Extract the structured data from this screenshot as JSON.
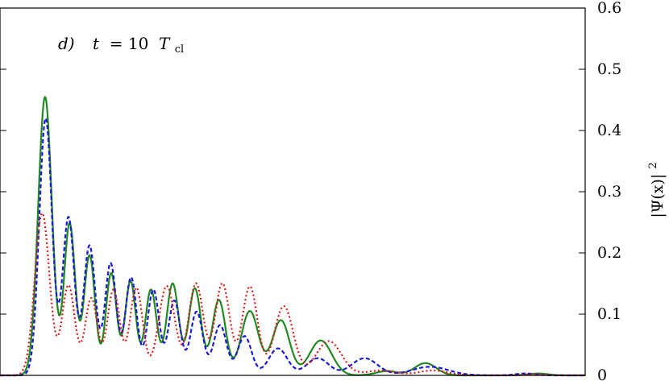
{
  "chart_data": {
    "type": "line",
    "annotation": {
      "panel": "d)",
      "var": "t",
      "eq": " = 10 ",
      "sym": "T",
      "sub": "cl"
    },
    "ylabel": {
      "main": "|Ψ(x)|",
      "sup": "2"
    },
    "xlim": [
      0,
      1
    ],
    "ylim": [
      0,
      0.6
    ],
    "yticks": [
      0,
      0.1,
      0.2,
      0.3,
      0.4,
      0.5,
      0.6
    ],
    "ytick_labels": [
      "0",
      "0.1",
      "0.2",
      "0.3",
      "0.4",
      "0.5",
      "0.6"
    ],
    "grid": false,
    "series": [
      {
        "color": "#228822",
        "style": "solid",
        "peaks": [
          [
            0.077,
            0.455
          ],
          [
            0.119,
            0.248
          ],
          [
            0.153,
            0.196
          ],
          [
            0.19,
            0.167
          ],
          [
            0.223,
            0.154
          ],
          [
            0.258,
            0.14
          ],
          [
            0.295,
            0.15
          ],
          [
            0.333,
            0.142
          ],
          [
            0.374,
            0.123
          ],
          [
            0.427,
            0.105
          ],
          [
            0.48,
            0.09
          ],
          [
            0.548,
            0.057
          ],
          [
            0.661,
            0.007
          ],
          [
            0.727,
            0.02
          ],
          [
            0.92,
            0.003
          ]
        ]
      },
      {
        "color": "#1a1ad6",
        "style": "dashed",
        "peaks": [
          [
            0.078,
            0.42
          ],
          [
            0.117,
            0.258
          ],
          [
            0.153,
            0.212
          ],
          [
            0.189,
            0.183
          ],
          [
            0.224,
            0.16
          ],
          [
            0.262,
            0.14
          ],
          [
            0.298,
            0.122
          ],
          [
            0.336,
            0.104
          ],
          [
            0.376,
            0.082
          ],
          [
            0.418,
            0.064
          ],
          [
            0.475,
            0.044
          ],
          [
            0.543,
            0.028
          ],
          [
            0.623,
            0.028
          ],
          [
            0.735,
            0.014
          ],
          [
            0.898,
            0.003
          ]
        ]
      },
      {
        "color": "#e01818",
        "style": "dotted",
        "peaks": [
          [
            0.072,
            0.265
          ],
          [
            0.117,
            0.147
          ],
          [
            0.156,
            0.126
          ],
          [
            0.194,
            0.14
          ],
          [
            0.233,
            0.143
          ],
          [
            0.285,
            0.146
          ],
          [
            0.335,
            0.15
          ],
          [
            0.38,
            0.15
          ],
          [
            0.427,
            0.145
          ],
          [
            0.485,
            0.113
          ],
          [
            0.562,
            0.056
          ],
          [
            0.651,
            0.008
          ],
          [
            0.74,
            0.008
          ],
          [
            0.91,
            0.002
          ]
        ]
      }
    ]
  }
}
